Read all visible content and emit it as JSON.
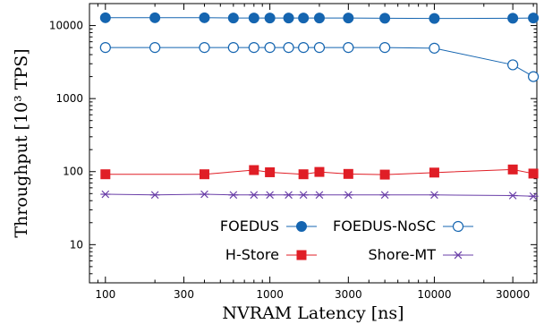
{
  "chart_data": {
    "type": "line",
    "xlabel": "NVRAM Latency [ns]",
    "ylabel": "Throughput [10³ TPS]",
    "x_scale": "log",
    "y_scale": "log",
    "xlim": [
      80,
      42000
    ],
    "ylim": [
      3,
      20000
    ],
    "x_ticks": [
      {
        "value": 100,
        "label": "100"
      },
      {
        "value": 300,
        "label": "300"
      },
      {
        "value": 1000,
        "label": "1000"
      },
      {
        "value": 3000,
        "label": "3000"
      },
      {
        "value": 10000,
        "label": "10000"
      },
      {
        "value": 30000,
        "label": "30000"
      }
    ],
    "y_ticks": [
      {
        "value": 10,
        "label": "10"
      },
      {
        "value": 100,
        "label": "100"
      },
      {
        "value": 1000,
        "label": "1000"
      },
      {
        "value": 10000,
        "label": "10000"
      }
    ],
    "grid": false,
    "legend_position": "bottom-center",
    "series": [
      {
        "name": "FOEDUS",
        "color": "#1565b0",
        "marker": "filled-circle",
        "x": [
          100,
          200,
          400,
          600,
          800,
          1000,
          1300,
          1600,
          2000,
          3000,
          5000,
          10000,
          30000,
          40000
        ],
        "y": [
          12800,
          12800,
          12800,
          12700,
          12700,
          12700,
          12700,
          12700,
          12700,
          12700,
          12600,
          12500,
          12600,
          12700
        ]
      },
      {
        "name": "FOEDUS-NoSC",
        "color": "#1565b0",
        "marker": "open-circle",
        "x": [
          100,
          200,
          400,
          600,
          800,
          1000,
          1300,
          1600,
          2000,
          3000,
          5000,
          10000,
          30000,
          40000
        ],
        "y": [
          5000,
          5000,
          5000,
          5000,
          5000,
          5000,
          5000,
          5000,
          5000,
          5000,
          5000,
          4900,
          2900,
          2000
        ]
      },
      {
        "name": "H-Store",
        "color": "#e01e26",
        "marker": "filled-square",
        "x": [
          100,
          400,
          800,
          1000,
          1600,
          2000,
          3000,
          5000,
          10000,
          30000,
          40000
        ],
        "y": [
          92,
          92,
          105,
          98,
          92,
          99,
          93,
          91,
          97,
          107,
          94
        ]
      },
      {
        "name": "Shore-MT",
        "color": "#6a3fa8",
        "marker": "asterisk",
        "x": [
          100,
          200,
          400,
          600,
          800,
          1000,
          1300,
          1600,
          2000,
          3000,
          5000,
          10000,
          30000,
          40000
        ],
        "y": [
          49,
          48,
          49,
          48,
          48,
          48,
          48,
          48,
          48,
          48,
          48,
          48,
          47,
          46
        ]
      }
    ]
  }
}
